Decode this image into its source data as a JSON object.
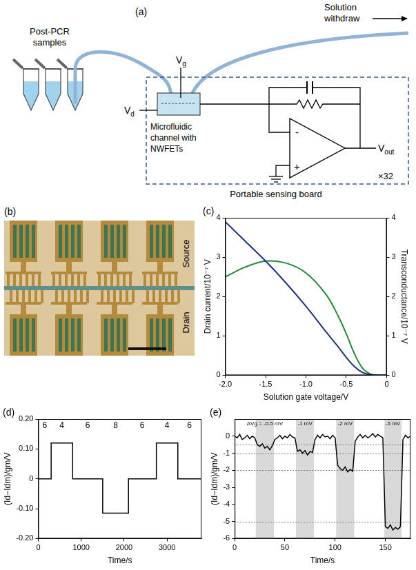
{
  "diagram": {
    "title": "(a)",
    "samples_label": "Post-PCR samples",
    "outlet_label": "Solution withdraw",
    "gate_label": {
      "main": "V",
      "sub": "g"
    },
    "drain_label": {
      "main": "V",
      "sub": "d"
    },
    "output_label": {
      "main": "V",
      "sub": "out"
    },
    "chip_label": "Microfluidic channel with NWFETs",
    "inverting_input": "-",
    "noninverting_input": "+",
    "multiplier": "×32",
    "board_label": "Portable sensing board"
  },
  "micrograph": {
    "title": "(b)",
    "source_label": "Source",
    "drain_label": "Drain"
  },
  "chart_data": [
    {
      "type": "line",
      "title": "(c)",
      "x_label": "Solution gate voltage/V",
      "y_label": "Drain current/10⁻⁷ V",
      "y2_label": "Transconductance/10⁻⁷ V",
      "x": [
        -2.0,
        -1.75,
        -1.5,
        -1.25,
        -1.0,
        -0.75,
        -0.6,
        -0.5,
        -0.4,
        -0.3,
        -0.2,
        -0.1,
        0
      ],
      "series": [
        {
          "color": "#1f2f86",
          "values": [
            3.9,
            3.4,
            2.9,
            2.35,
            1.75,
            1.1,
            0.72,
            0.45,
            0.22,
            0.07,
            0.01,
            0,
            0
          ]
        },
        {
          "color": "#1e8a3a",
          "axis": "y2",
          "values": [
            2.5,
            2.75,
            2.9,
            2.85,
            2.6,
            2.05,
            1.5,
            1.05,
            0.55,
            0.18,
            0.03,
            0,
            0
          ]
        }
      ],
      "xlim": [
        -2.0,
        0
      ],
      "xticks": [
        {
          "value": -2.0,
          "label": "-2.0"
        },
        -1.5,
        {
          "value": -1.0,
          "label": "-1.0"
        },
        -0.5,
        0
      ],
      "ylim": [
        0,
        4
      ],
      "yticks": [
        0,
        1,
        2,
        3,
        4
      ],
      "y2lim": [
        0,
        4
      ],
      "y2ticks": [
        0,
        1,
        2,
        3,
        4
      ],
      "grid": false
    },
    {
      "type": "line",
      "title": "(d)",
      "x_label": "Time/s",
      "y_label": "(Id−Idm)/gm/V",
      "x": [
        0,
        300,
        300,
        800,
        800,
        1500,
        1500,
        2100,
        2100,
        2750,
        2750,
        3250,
        3250,
        3800
      ],
      "values": [
        0,
        0,
        0.12,
        0.12,
        0,
        0,
        -0.115,
        -0.115,
        0,
        0,
        0.12,
        0.12,
        0,
        0
      ],
      "color": "#000000",
      "xlim": [
        0,
        3800
      ],
      "xticks": [
        0,
        1000,
        2000,
        3000
      ],
      "ylim": [
        -0.2,
        0.2
      ],
      "yticks": [
        {
          "value": -0.2,
          "label": "-0.20"
        },
        {
          "value": -0.1,
          "label": "-0.10"
        },
        0,
        {
          "value": 0.1,
          "label": "0.10"
        },
        {
          "value": 0.2,
          "label": "0.20"
        }
      ],
      "annotations": [
        {
          "text": "6",
          "x": 150
        },
        {
          "text": "4",
          "x": 550
        },
        {
          "text": "6",
          "x": 1150
        },
        {
          "text": "8",
          "x": 1800
        },
        {
          "text": "6",
          "x": 2420
        },
        {
          "text": "4",
          "x": 3000
        },
        {
          "text": "6",
          "x": 3520
        }
      ],
      "grid": false
    },
    {
      "type": "line",
      "title": "(e)",
      "x_label": "Time/s",
      "y_label": "(Id−Idm)/gm/V",
      "x": [
        0,
        2.5,
        5,
        7.5,
        10,
        12.5,
        15,
        17.5,
        20,
        22.5,
        25,
        27.5,
        30,
        32.5,
        35,
        37.5,
        40,
        42.5,
        45,
        47.5,
        50,
        52.5,
        55,
        57.5,
        60,
        62.5,
        65,
        67.5,
        70,
        72.5,
        75,
        77.5,
        80,
        82.5,
        85,
        87.5,
        90,
        92.5,
        95,
        97.5,
        100,
        102.5,
        105,
        107.5,
        110,
        112.5,
        115,
        117.5,
        120,
        122.5,
        125,
        127.5,
        130,
        132.5,
        135,
        137.5,
        140,
        142.5,
        145,
        147.5,
        150,
        152.5,
        155,
        157.5,
        160,
        162.5,
        165,
        167.5,
        170,
        172.5,
        175
      ],
      "values": [
        0.0,
        -0.1,
        0.1,
        -0.2,
        -0.1,
        0.05,
        -0.15,
        0.0,
        -0.1,
        -0.5,
        -0.6,
        -0.45,
        -0.7,
        -0.6,
        -0.8,
        -0.55,
        -0.2,
        -0.1,
        0.05,
        -0.15,
        0.0,
        -0.1,
        0.1,
        -0.05,
        -0.1,
        -0.9,
        -0.8,
        -1.0,
        -0.85,
        -1.1,
        -0.9,
        -0.95,
        -0.2,
        0.05,
        -0.1,
        0.1,
        -0.05,
        0.0,
        -0.15,
        0.05,
        -0.1,
        -1.7,
        -1.9,
        -2.0,
        -1.8,
        -2.1,
        -1.95,
        -2.05,
        -0.3,
        -0.05,
        0.1,
        -0.1,
        0.05,
        -0.1,
        0.0,
        0.15,
        -0.05,
        0.1,
        0.0,
        -0.1,
        -5.3,
        -5.4,
        -5.2,
        -5.5,
        -5.35,
        -5.45,
        -5.3,
        -0.2,
        0.05,
        -0.1,
        0.0
      ],
      "color": "#000000",
      "xlim": [
        0,
        175
      ],
      "xticks": [
        0,
        50,
        100,
        150
      ],
      "ylim": [
        -6,
        1
      ],
      "yticks": [
        -6,
        -5,
        -4,
        -3,
        -2,
        -1,
        0
      ],
      "regions": [
        {
          "from": 21,
          "to": 39,
          "label": "ΔVg = -0.5 mV"
        },
        {
          "from": 61,
          "to": 79,
          "label": "-1 mV"
        },
        {
          "from": 101,
          "to": 119,
          "label": "-2 mV"
        },
        {
          "from": 149,
          "to": 166,
          "label": "-5 mV"
        }
      ],
      "reference_lines": [
        -0.5,
        -1,
        -2,
        -5
      ],
      "grid": false
    }
  ]
}
